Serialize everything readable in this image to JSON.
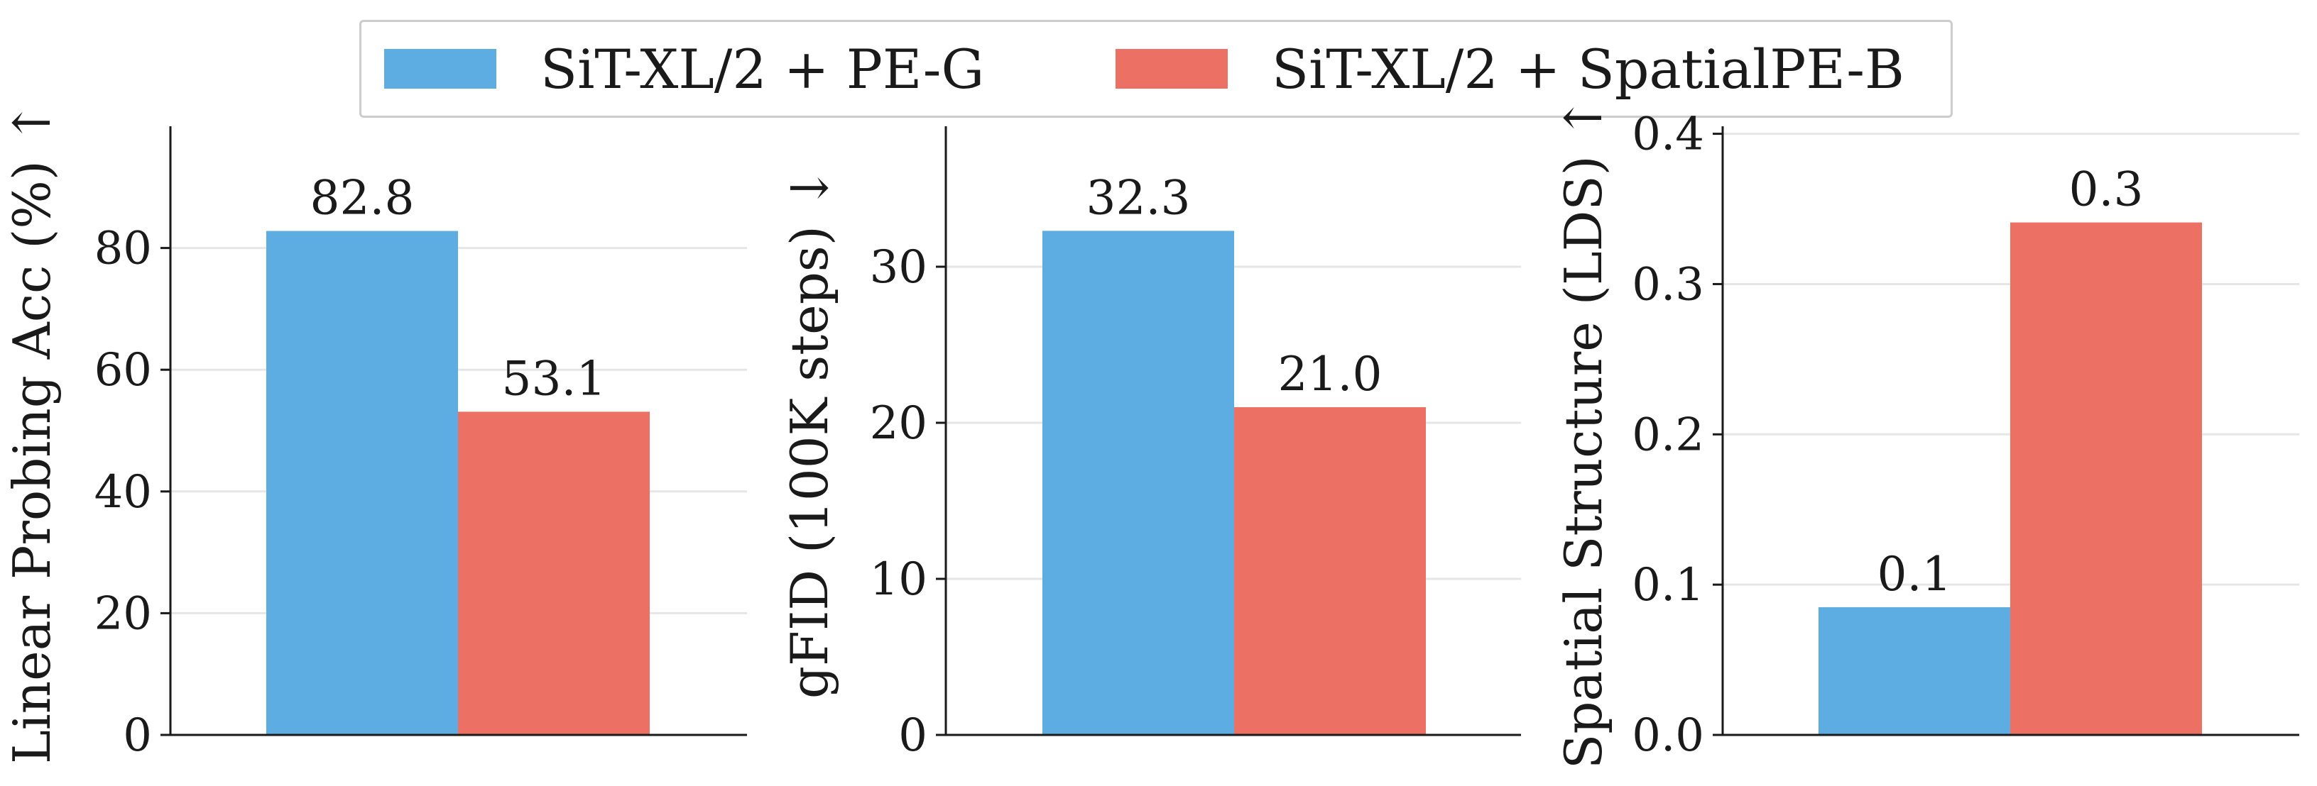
{
  "legend": {
    "items": [
      {
        "label": "SiT-XL/2 + PE-G",
        "color": "#5dade2"
      },
      {
        "label": "SiT-XL/2 + SpatialPE-B",
        "color": "#ec7063"
      }
    ]
  },
  "chart_data": [
    {
      "type": "bar",
      "categories": [
        ""
      ],
      "series": [
        {
          "name": "SiT-XL/2 + PE-G",
          "values": [
            82.8
          ],
          "labels": [
            "82.8"
          ],
          "color": "#5dade2"
        },
        {
          "name": "SiT-XL/2 + SpatialPE-B",
          "values": [
            53.1
          ],
          "labels": [
            "53.1"
          ],
          "color": "#ec7063"
        }
      ],
      "ylabel": "Linear Probing Acc (%)",
      "arrow": "↑",
      "ylim": [
        0,
        100
      ],
      "yticks": [
        0,
        20,
        40,
        60,
        80
      ],
      "ytick_labels": [
        "0",
        "20",
        "40",
        "60",
        "80"
      ],
      "grid": true
    },
    {
      "type": "bar",
      "categories": [
        ""
      ],
      "series": [
        {
          "name": "SiT-XL/2 + PE-G",
          "values": [
            32.3
          ],
          "labels": [
            "32.3"
          ],
          "color": "#5dade2"
        },
        {
          "name": "SiT-XL/2 + SpatialPE-B",
          "values": [
            21.0
          ],
          "labels": [
            "21.0"
          ],
          "color": "#ec7063"
        }
      ],
      "ylabel": "gFID (100K steps)",
      "arrow": "↓",
      "ylim": [
        0,
        39
      ],
      "yticks": [
        0,
        10,
        20,
        30
      ],
      "ytick_labels": [
        "0",
        "10",
        "20",
        "30"
      ],
      "grid": true
    },
    {
      "type": "bar",
      "categories": [
        ""
      ],
      "series": [
        {
          "name": "SiT-XL/2 + PE-G",
          "values": [
            0.085
          ],
          "labels": [
            "0.1"
          ],
          "color": "#5dade2"
        },
        {
          "name": "SiT-XL/2 + SpatialPE-B",
          "values": [
            0.341
          ],
          "labels": [
            "0.3"
          ],
          "color": "#ec7063"
        }
      ],
      "ylabel": "Spatial Structure (LDS)",
      "arrow": "↑",
      "ylim": [
        0,
        0.405
      ],
      "yticks": [
        0.0,
        0.1,
        0.2,
        0.3,
        0.4
      ],
      "ytick_labels": [
        "0.0",
        "0.1",
        "0.2",
        "0.3",
        "0.4"
      ],
      "grid": true
    }
  ]
}
